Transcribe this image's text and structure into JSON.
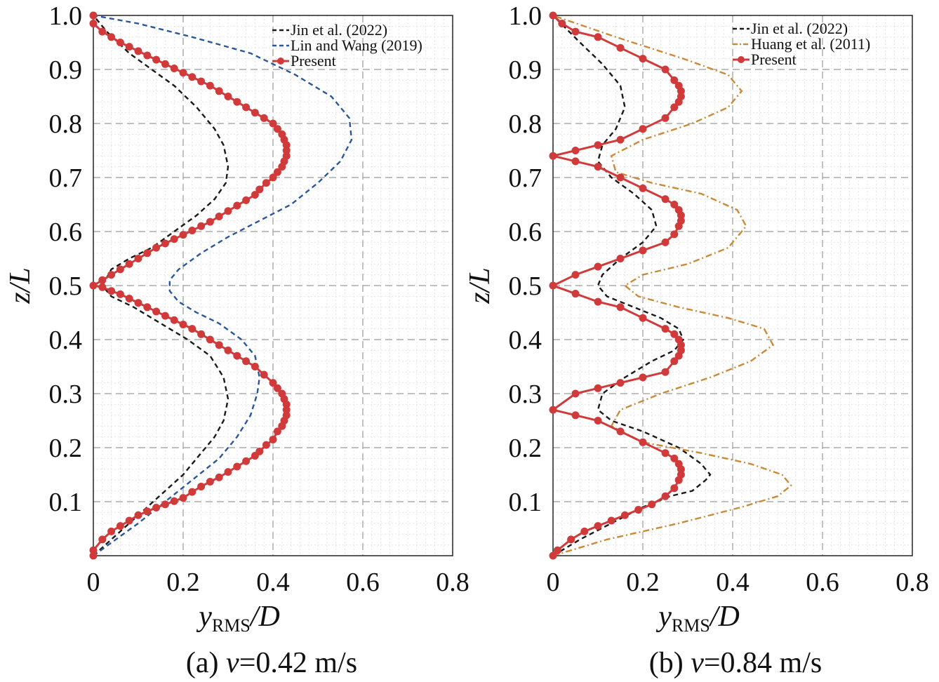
{
  "chart_data": [
    {
      "type": "line",
      "panel": "a",
      "caption_prefix": "(a) ",
      "caption_var": "v",
      "caption_value": "=0.42 m/s",
      "xlabel_main": "y",
      "xlabel_sub": "RMS",
      "xlabel_tail": "/D",
      "ylabel": "z/L",
      "xlim": [
        0,
        0.8
      ],
      "ylim": [
        0,
        1.0
      ],
      "xticks": [
        "0",
        "0.2",
        "0.4",
        "0.6",
        "0.8"
      ],
      "yticks": [
        "0.1",
        "0.2",
        "0.3",
        "0.4",
        "0.5",
        "0.6",
        "0.7",
        "0.8",
        "0.9",
        "1.0"
      ],
      "grid": true,
      "legend_position": "top-right",
      "series": [
        {
          "name": "Jin et al. (2022)",
          "style": "dashed",
          "color": "#1a1a1a",
          "x": [
            0.0,
            0.04,
            0.08,
            0.12,
            0.16,
            0.2,
            0.24,
            0.27,
            0.29,
            0.3,
            0.29,
            0.26,
            0.21,
            0.15,
            0.09,
            0.04,
            0.02,
            0.04,
            0.08,
            0.13,
            0.18,
            0.23,
            0.27,
            0.295,
            0.3,
            0.29,
            0.27,
            0.23,
            0.18,
            0.13,
            0.08,
            0.03,
            0.0
          ],
          "y": [
            0.0,
            0.03,
            0.06,
            0.09,
            0.12,
            0.15,
            0.19,
            0.22,
            0.25,
            0.29,
            0.33,
            0.37,
            0.4,
            0.43,
            0.46,
            0.48,
            0.5,
            0.53,
            0.55,
            0.57,
            0.6,
            0.63,
            0.66,
            0.69,
            0.72,
            0.76,
            0.79,
            0.83,
            0.87,
            0.9,
            0.93,
            0.97,
            1.0
          ]
        },
        {
          "name": "Lin and Wang (2019)",
          "style": "dashed",
          "color": "#2b579a",
          "x": [
            0.0,
            0.05,
            0.1,
            0.16,
            0.22,
            0.28,
            0.32,
            0.35,
            0.365,
            0.37,
            0.36,
            0.33,
            0.28,
            0.23,
            0.19,
            0.17,
            0.17,
            0.19,
            0.24,
            0.3,
            0.37,
            0.44,
            0.5,
            0.55,
            0.575,
            0.57,
            0.53,
            0.45,
            0.35,
            0.22,
            0.1,
            0.0
          ],
          "y": [
            0.0,
            0.03,
            0.06,
            0.1,
            0.14,
            0.18,
            0.22,
            0.26,
            0.3,
            0.33,
            0.37,
            0.4,
            0.43,
            0.45,
            0.47,
            0.49,
            0.51,
            0.53,
            0.56,
            0.59,
            0.62,
            0.65,
            0.69,
            0.73,
            0.77,
            0.81,
            0.85,
            0.89,
            0.93,
            0.96,
            0.985,
            1.0
          ]
        },
        {
          "name": "Present",
          "style": "solid-marker",
          "color": "#d13a3a",
          "x": [
            0.0,
            0.0,
            0.02,
            0.04,
            0.06,
            0.08,
            0.1,
            0.12,
            0.14,
            0.16,
            0.18,
            0.2,
            0.22,
            0.24,
            0.26,
            0.28,
            0.3,
            0.32,
            0.34,
            0.36,
            0.37,
            0.385,
            0.4,
            0.41,
            0.42,
            0.425,
            0.43,
            0.43,
            0.43,
            0.425,
            0.42,
            0.41,
            0.4,
            0.38,
            0.36,
            0.34,
            0.32,
            0.3,
            0.28,
            0.26,
            0.24,
            0.22,
            0.2,
            0.18,
            0.16,
            0.14,
            0.12,
            0.1,
            0.08,
            0.06,
            0.04,
            0.02,
            0.0,
            0.02,
            0.04,
            0.06,
            0.08,
            0.1,
            0.12,
            0.14,
            0.16,
            0.18,
            0.2,
            0.22,
            0.24,
            0.26,
            0.28,
            0.3,
            0.32,
            0.34,
            0.36,
            0.37,
            0.385,
            0.4,
            0.41,
            0.42,
            0.425,
            0.43,
            0.43,
            0.43,
            0.425,
            0.42,
            0.41,
            0.4,
            0.38,
            0.36,
            0.34,
            0.32,
            0.3,
            0.28,
            0.26,
            0.24,
            0.22,
            0.2,
            0.18,
            0.16,
            0.14,
            0.12,
            0.1,
            0.08,
            0.06,
            0.04,
            0.02,
            0.0,
            0.0
          ],
          "y": [
            0.0,
            0.01,
            0.03,
            0.045,
            0.055,
            0.065,
            0.075,
            0.082,
            0.089,
            0.095,
            0.101,
            0.107,
            0.118,
            0.128,
            0.137,
            0.145,
            0.155,
            0.165,
            0.175,
            0.185,
            0.193,
            0.205,
            0.215,
            0.23,
            0.24,
            0.25,
            0.26,
            0.27,
            0.28,
            0.29,
            0.3,
            0.31,
            0.32,
            0.335,
            0.35,
            0.36,
            0.37,
            0.38,
            0.39,
            0.4,
            0.41,
            0.42,
            0.428,
            0.436,
            0.444,
            0.452,
            0.46,
            0.468,
            0.476,
            0.484,
            0.49,
            0.497,
            0.5,
            0.51,
            0.52,
            0.53,
            0.54,
            0.55,
            0.56,
            0.57,
            0.578,
            0.586,
            0.594,
            0.602,
            0.61,
            0.618,
            0.628,
            0.638,
            0.648,
            0.658,
            0.668,
            0.678,
            0.69,
            0.7,
            0.71,
            0.72,
            0.73,
            0.74,
            0.75,
            0.76,
            0.77,
            0.78,
            0.79,
            0.8,
            0.81,
            0.82,
            0.83,
            0.84,
            0.85,
            0.86,
            0.87,
            0.878,
            0.886,
            0.894,
            0.902,
            0.91,
            0.918,
            0.926,
            0.934,
            0.942,
            0.95,
            0.96,
            0.97,
            0.985,
            1.0
          ]
        }
      ]
    },
    {
      "type": "line",
      "panel": "b",
      "caption_prefix": "(b) ",
      "caption_var": "v",
      "caption_value": "=0.84 m/s",
      "xlabel_main": "y",
      "xlabel_sub": "RMS",
      "xlabel_tail": "/D",
      "ylabel": "z/L",
      "xlim": [
        0,
        0.8
      ],
      "ylim": [
        0,
        1.0
      ],
      "xticks": [
        "0",
        "0.2",
        "0.4",
        "0.6",
        "0.8"
      ],
      "yticks": [
        "0.1",
        "0.2",
        "0.3",
        "0.4",
        "0.5",
        "0.6",
        "0.7",
        "0.8",
        "0.9",
        "1.0"
      ],
      "grid": true,
      "legend_position": "top-right",
      "series": [
        {
          "name": "Jin et al. (2022)",
          "style": "dashed",
          "color": "#1a1a1a",
          "x": [
            0.0,
            0.06,
            0.13,
            0.2,
            0.26,
            0.31,
            0.34,
            0.35,
            0.33,
            0.28,
            0.2,
            0.13,
            0.1,
            0.11,
            0.16,
            0.22,
            0.27,
            0.29,
            0.28,
            0.24,
            0.18,
            0.12,
            0.1,
            0.11,
            0.15,
            0.2,
            0.23,
            0.22,
            0.18,
            0.13,
            0.1,
            0.11,
            0.14,
            0.16,
            0.15,
            0.11,
            0.06,
            0.0
          ],
          "y": [
            0.0,
            0.03,
            0.06,
            0.09,
            0.11,
            0.12,
            0.14,
            0.15,
            0.17,
            0.2,
            0.23,
            0.25,
            0.27,
            0.3,
            0.33,
            0.36,
            0.38,
            0.4,
            0.42,
            0.44,
            0.46,
            0.48,
            0.5,
            0.52,
            0.55,
            0.58,
            0.61,
            0.64,
            0.67,
            0.7,
            0.73,
            0.76,
            0.79,
            0.83,
            0.87,
            0.91,
            0.95,
            1.0
          ]
        },
        {
          "name": "Huang et al. (2011)",
          "style": "dashdot",
          "color": "#c98a3a",
          "x": [
            0.0,
            0.12,
            0.28,
            0.42,
            0.5,
            0.53,
            0.51,
            0.44,
            0.33,
            0.2,
            0.13,
            0.15,
            0.24,
            0.35,
            0.44,
            0.49,
            0.47,
            0.39,
            0.28,
            0.19,
            0.16,
            0.2,
            0.3,
            0.39,
            0.43,
            0.41,
            0.33,
            0.22,
            0.14,
            0.13,
            0.2,
            0.31,
            0.39,
            0.42,
            0.39,
            0.29,
            0.14,
            0.0
          ],
          "y": [
            0.0,
            0.03,
            0.06,
            0.09,
            0.11,
            0.13,
            0.15,
            0.17,
            0.19,
            0.21,
            0.24,
            0.27,
            0.3,
            0.33,
            0.36,
            0.39,
            0.42,
            0.44,
            0.46,
            0.48,
            0.5,
            0.52,
            0.54,
            0.57,
            0.61,
            0.64,
            0.67,
            0.69,
            0.71,
            0.74,
            0.77,
            0.8,
            0.83,
            0.86,
            0.89,
            0.92,
            0.96,
            1.0
          ]
        },
        {
          "name": "Present",
          "style": "solid-marker",
          "color": "#d13a3a",
          "x": [
            0.0,
            0.01,
            0.04,
            0.07,
            0.1,
            0.13,
            0.16,
            0.19,
            0.22,
            0.25,
            0.27,
            0.28,
            0.285,
            0.285,
            0.28,
            0.27,
            0.25,
            0.2,
            0.15,
            0.1,
            0.05,
            0.0,
            0.05,
            0.1,
            0.15,
            0.2,
            0.25,
            0.27,
            0.28,
            0.285,
            0.285,
            0.28,
            0.27,
            0.25,
            0.2,
            0.15,
            0.1,
            0.05,
            0.0,
            0.05,
            0.1,
            0.15,
            0.2,
            0.25,
            0.27,
            0.28,
            0.285,
            0.285,
            0.28,
            0.27,
            0.25,
            0.2,
            0.15,
            0.1,
            0.05,
            0.0,
            0.05,
            0.1,
            0.15,
            0.2,
            0.25,
            0.27,
            0.28,
            0.285,
            0.285,
            0.28,
            0.27,
            0.25,
            0.2,
            0.15,
            0.1,
            0.05,
            0.02,
            0.0
          ],
          "y": [
            0.0,
            0.01,
            0.03,
            0.045,
            0.055,
            0.065,
            0.075,
            0.085,
            0.095,
            0.11,
            0.125,
            0.14,
            0.15,
            0.16,
            0.17,
            0.18,
            0.19,
            0.21,
            0.23,
            0.25,
            0.26,
            0.27,
            0.3,
            0.31,
            0.32,
            0.33,
            0.34,
            0.36,
            0.37,
            0.38,
            0.39,
            0.4,
            0.41,
            0.42,
            0.44,
            0.46,
            0.47,
            0.485,
            0.5,
            0.52,
            0.535,
            0.55,
            0.565,
            0.58,
            0.595,
            0.61,
            0.62,
            0.63,
            0.64,
            0.65,
            0.66,
            0.68,
            0.7,
            0.72,
            0.73,
            0.74,
            0.75,
            0.76,
            0.77,
            0.79,
            0.81,
            0.83,
            0.84,
            0.85,
            0.86,
            0.87,
            0.88,
            0.9,
            0.92,
            0.94,
            0.96,
            0.97,
            0.985,
            1.0
          ]
        }
      ]
    }
  ]
}
